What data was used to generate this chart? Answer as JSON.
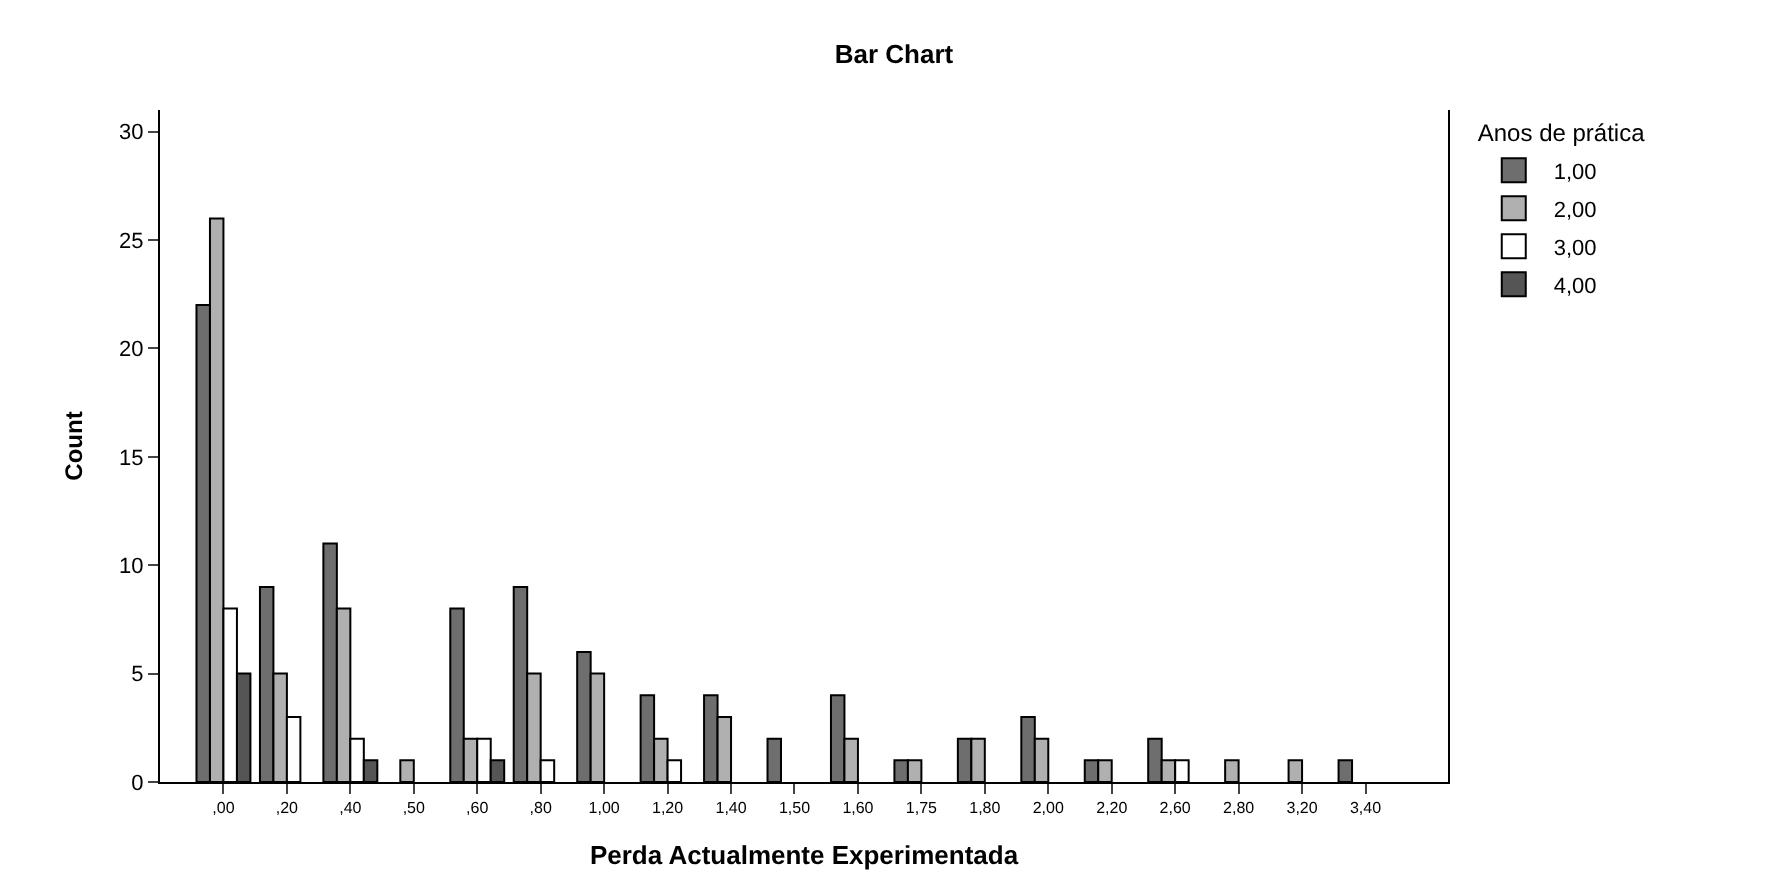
{
  "chart_data": {
    "type": "bar",
    "title": "Bar Chart",
    "xlabel": "Perda Actualmente Experimentada",
    "ylabel": "Count",
    "legend_title": "Anos de prática",
    "categories": [
      ",00",
      ",20",
      ",40",
      ",50",
      ",60",
      ",80",
      "1,00",
      "1,20",
      "1,40",
      "1,50",
      "1,60",
      "1,75",
      "1,80",
      "2,00",
      "2,20",
      "2,60",
      "2,80",
      "3,20",
      "3,40"
    ],
    "series": [
      {
        "name": "1,00",
        "color": "#6e6e6e",
        "values": [
          22,
          9,
          11,
          null,
          8,
          9,
          6,
          4,
          4,
          2,
          4,
          1,
          2,
          3,
          1,
          2,
          null,
          null,
          1
        ]
      },
      {
        "name": "2,00",
        "color": "#b0b0b0",
        "values": [
          26,
          5,
          8,
          1,
          2,
          5,
          5,
          2,
          3,
          null,
          2,
          1,
          2,
          2,
          1,
          1,
          1,
          1,
          null
        ]
      },
      {
        "name": "3,00",
        "color": "#ffffff",
        "values": [
          8,
          3,
          2,
          null,
          2,
          1,
          null,
          1,
          null,
          null,
          null,
          null,
          null,
          null,
          null,
          1,
          null,
          null,
          null
        ]
      },
      {
        "name": "4,00",
        "color": "#555555",
        "values": [
          5,
          null,
          1,
          null,
          1,
          null,
          null,
          null,
          null,
          null,
          null,
          null,
          null,
          null,
          null,
          null,
          null,
          null,
          null
        ]
      }
    ],
    "ylim": [
      0,
      31
    ],
    "yticks": [
      0,
      5,
      10,
      15,
      20,
      25,
      30
    ],
    "legend": "top right"
  }
}
